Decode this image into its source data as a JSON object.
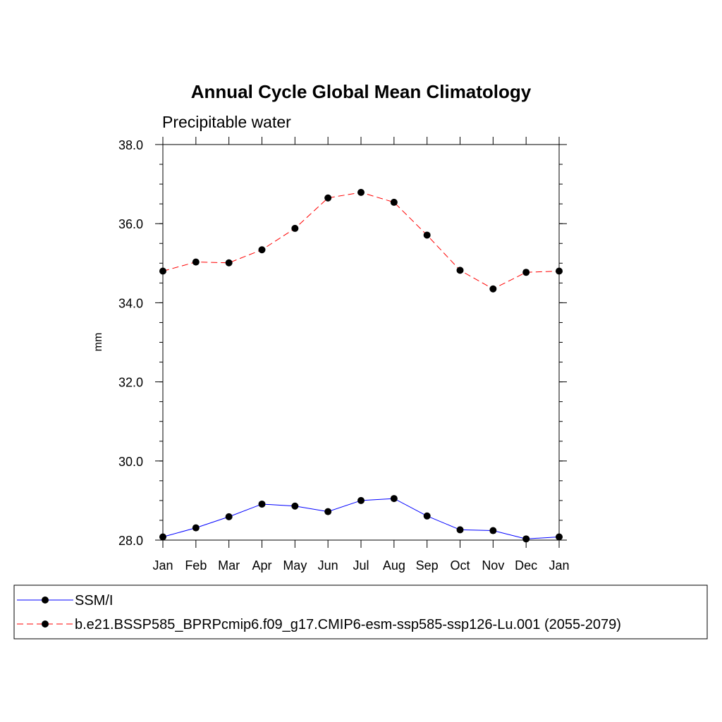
{
  "chart_data": {
    "type": "line",
    "title": "Annual Cycle Global Mean Climatology",
    "subtitle": "Precipitable water",
    "xlabel": "",
    "ylabel": "mm",
    "ylim": [
      28.0,
      38.0
    ],
    "y_ticks": [
      "28.0",
      "30.0",
      "32.0",
      "34.0",
      "36.0",
      "38.0"
    ],
    "y_tick_values": [
      28,
      30,
      32,
      34,
      36,
      38
    ],
    "y_minor_step": 0.5,
    "categories": [
      "Jan",
      "Feb",
      "Mar",
      "Apr",
      "May",
      "Jun",
      "Jul",
      "Aug",
      "Sep",
      "Oct",
      "Nov",
      "Dec",
      "Jan"
    ],
    "grid": false,
    "legend_position": "bottom",
    "series": [
      {
        "name": "SSM/I",
        "color": "#0000ff",
        "dash": "solid",
        "values": [
          28.08,
          28.31,
          28.59,
          28.91,
          28.86,
          28.72,
          29.0,
          29.05,
          28.61,
          28.26,
          28.24,
          28.03,
          28.08
        ]
      },
      {
        "name": "b.e21.BSSP585_BPRPcmip6.f09_g17.CMIP6-esm-ssp585-ssp126-Lu.001 (2055-2079)",
        "color": "#ff0000",
        "dash": "dashed",
        "values": [
          34.8,
          35.03,
          35.01,
          35.34,
          35.88,
          36.65,
          36.79,
          36.54,
          35.71,
          34.82,
          34.35,
          34.77,
          34.8
        ]
      }
    ]
  }
}
